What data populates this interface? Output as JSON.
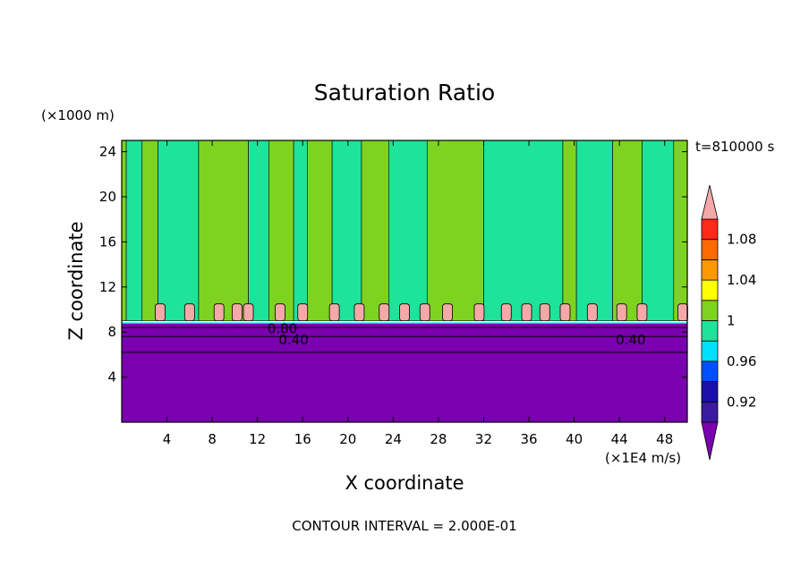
{
  "chart_data": {
    "type": "heatmap",
    "title": "Saturation Ratio",
    "xlabel": "X coordinate",
    "ylabel": "Z coordinate",
    "x_unit": "(×1E4 m/s)",
    "y_unit": "(×1000 m)",
    "time_label": "t=810000 s",
    "footer": "CONTOUR INTERVAL = 2.000E-01",
    "xlim": [
      0,
      50
    ],
    "ylim": [
      0,
      25
    ],
    "x_ticks": [
      "4",
      "8",
      "12",
      "16",
      "20",
      "24",
      "28",
      "32",
      "36",
      "40",
      "44",
      "48"
    ],
    "x_tick_values": [
      4,
      8,
      12,
      16,
      20,
      24,
      28,
      32,
      36,
      40,
      44,
      48
    ],
    "y_ticks": [
      "4",
      "8",
      "12",
      "16",
      "20",
      "24"
    ],
    "y_tick_values": [
      4,
      8,
      12,
      16,
      20,
      24
    ],
    "contour_labels": [
      {
        "text": "0.80",
        "x": 14.2,
        "y": 8.3
      },
      {
        "text": "0.40",
        "x": 15.2,
        "y": 7.3
      },
      {
        "text": "0.40",
        "x": 45.0,
        "y": 7.3
      }
    ],
    "colorbar": {
      "levels": [
        0.9,
        0.92,
        0.94,
        0.96,
        0.98,
        1.0,
        1.02,
        1.04,
        1.06,
        1.08,
        1.1
      ],
      "colors": [
        "#3a1aa0",
        "#1a10a8",
        "#0050ff",
        "#00e0ff",
        "#1ee39a",
        "#7ed321",
        "#ffff00",
        "#ff9900",
        "#ff6a00",
        "#ff2a1a"
      ],
      "below_color": "#7a00b0",
      "above_color": "#f5a8a8",
      "tick_labels": [
        "0.92",
        "0.96",
        "1",
        "1.04",
        "1.08"
      ],
      "tick_values": [
        0.92,
        0.96,
        1.0,
        1.04,
        1.08
      ]
    },
    "field": {
      "lower_layer": {
        "z_top": 8.8,
        "value": "<0.90"
      },
      "cloud_base_z": 9.0,
      "cloud_top_z": 10.5,
      "upper_bands": [
        {
          "x0": 0.0,
          "x1": 0.4,
          "value": 1.0
        },
        {
          "x0": 0.4,
          "x1": 1.8,
          "value": 0.99
        },
        {
          "x0": 1.8,
          "x1": 3.2,
          "value": 1.0
        },
        {
          "x0": 3.2,
          "x1": 6.8,
          "value": 0.99
        },
        {
          "x0": 6.8,
          "x1": 11.2,
          "value": 1.0
        },
        {
          "x0": 11.2,
          "x1": 13.0,
          "value": 0.99
        },
        {
          "x0": 13.0,
          "x1": 15.2,
          "value": 1.0
        },
        {
          "x0": 15.2,
          "x1": 16.4,
          "value": 0.99
        },
        {
          "x0": 16.4,
          "x1": 18.6,
          "value": 1.0
        },
        {
          "x0": 18.6,
          "x1": 21.2,
          "value": 0.99
        },
        {
          "x0": 21.2,
          "x1": 23.6,
          "value": 1.0
        },
        {
          "x0": 23.6,
          "x1": 27.0,
          "value": 0.99
        },
        {
          "x0": 27.0,
          "x1": 32.0,
          "value": 1.0
        },
        {
          "x0": 32.0,
          "x1": 39.0,
          "value": 0.99
        },
        {
          "x0": 39.0,
          "x1": 40.2,
          "value": 1.0
        },
        {
          "x0": 40.2,
          "x1": 43.4,
          "value": 0.99
        },
        {
          "x0": 43.4,
          "x1": 46.0,
          "value": 1.0
        },
        {
          "x0": 46.0,
          "x1": 48.8,
          "value": 0.99
        },
        {
          "x0": 48.8,
          "x1": 50.0,
          "value": 1.0
        }
      ],
      "cloud_cells": [
        {
          "x": 3.4,
          "value": ">1.10"
        },
        {
          "x": 6.0,
          "value": ">1.10"
        },
        {
          "x": 8.6,
          "value": ">1.10"
        },
        {
          "x": 10.2,
          "value": ">1.10"
        },
        {
          "x": 11.2,
          "value": ">1.10"
        },
        {
          "x": 14.0,
          "value": ">1.10"
        },
        {
          "x": 16.0,
          "value": ">1.10"
        },
        {
          "x": 18.8,
          "value": ">1.10"
        },
        {
          "x": 21.0,
          "value": ">1.10"
        },
        {
          "x": 23.2,
          "value": ">1.10"
        },
        {
          "x": 25.0,
          "value": ">1.10"
        },
        {
          "x": 26.8,
          "value": ">1.10"
        },
        {
          "x": 28.8,
          "value": ">1.10"
        },
        {
          "x": 31.6,
          "value": ">1.10"
        },
        {
          "x": 34.0,
          "value": ">1.10"
        },
        {
          "x": 35.8,
          "value": ">1.10"
        },
        {
          "x": 37.4,
          "value": ">1.10"
        },
        {
          "x": 39.2,
          "value": ">1.10"
        },
        {
          "x": 41.6,
          "value": ">1.10"
        },
        {
          "x": 44.2,
          "value": ">1.10"
        },
        {
          "x": 46.0,
          "value": ">1.10"
        },
        {
          "x": 49.6,
          "value": ">1.10"
        }
      ],
      "contour_lines_z": [
        8.4,
        7.6,
        6.2
      ]
    }
  }
}
